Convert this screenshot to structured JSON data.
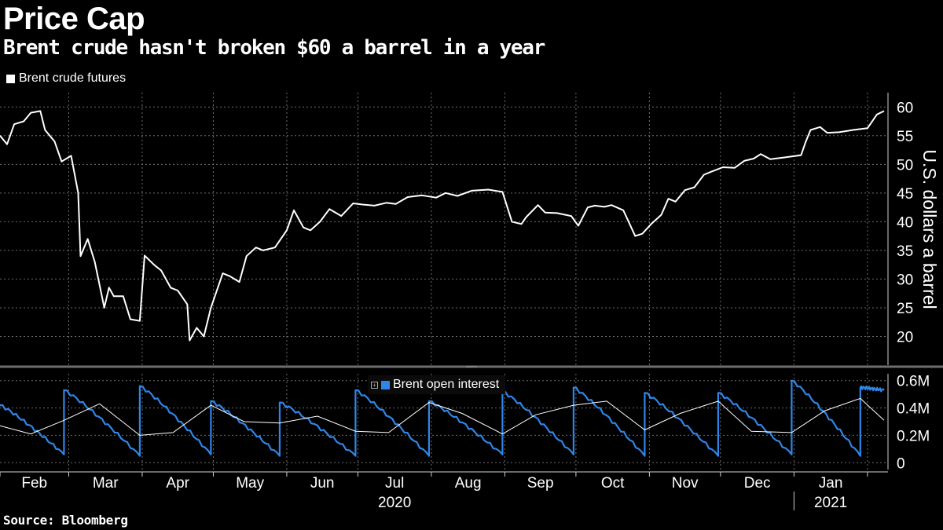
{
  "title": "Price Cap",
  "subtitle": "Brent crude hasn't broken $60 a barrel in a year",
  "source": "Source: Bloomberg",
  "colors": {
    "background": "#000000",
    "price_line": "#ffffff",
    "open_interest": "#2f86e8",
    "grid": "#6e6e6e"
  },
  "chart_data": [
    {
      "type": "line",
      "legend": [
        "Brent crude futures"
      ],
      "ylabel": "U.S. dollars a barrel",
      "ylim": [
        15,
        62.5
      ],
      "yticks": [
        20,
        25,
        30,
        35,
        40,
        45,
        50,
        55,
        60
      ],
      "axis_side": "right",
      "grid": true,
      "series": [
        {
          "name": "Brent crude futures",
          "x": [
            "2020-02-01",
            "2020-02-04",
            "2020-02-07",
            "2020-02-11",
            "2020-02-14",
            "2020-02-18",
            "2020-02-20",
            "2020-02-24",
            "2020-02-27",
            "2020-03-02",
            "2020-03-05",
            "2020-03-06",
            "2020-03-09",
            "2020-03-12",
            "2020-03-16",
            "2020-03-18",
            "2020-03-20",
            "2020-03-24",
            "2020-03-27",
            "2020-03-31",
            "2020-04-02",
            "2020-04-06",
            "2020-04-09",
            "2020-04-13",
            "2020-04-16",
            "2020-04-20",
            "2020-04-21",
            "2020-04-24",
            "2020-04-27",
            "2020-04-30",
            "2020-05-05",
            "2020-05-08",
            "2020-05-12",
            "2020-05-15",
            "2020-05-19",
            "2020-05-22",
            "2020-05-27",
            "2020-06-01",
            "2020-06-04",
            "2020-06-08",
            "2020-06-11",
            "2020-06-15",
            "2020-06-19",
            "2020-06-24",
            "2020-06-29",
            "2020-07-03",
            "2020-07-08",
            "2020-07-13",
            "2020-07-17",
            "2020-07-22",
            "2020-07-28",
            "2020-08-03",
            "2020-08-07",
            "2020-08-12",
            "2020-08-18",
            "2020-08-25",
            "2020-08-31",
            "2020-09-04",
            "2020-09-08",
            "2020-09-10",
            "2020-09-15",
            "2020-09-18",
            "2020-09-23",
            "2020-09-29",
            "2020-10-02",
            "2020-10-06",
            "2020-10-09",
            "2020-10-13",
            "2020-10-16",
            "2020-10-21",
            "2020-10-26",
            "2020-10-29",
            "2020-11-02",
            "2020-11-06",
            "2020-11-09",
            "2020-11-12",
            "2020-11-16",
            "2020-11-20",
            "2020-11-24",
            "2020-11-27",
            "2020-12-02",
            "2020-12-07",
            "2020-12-11",
            "2020-12-15",
            "2020-12-18",
            "2020-12-22",
            "2020-12-28",
            "2021-01-04",
            "2021-01-06",
            "2021-01-08",
            "2021-01-12",
            "2021-01-15",
            "2021-01-20",
            "2021-01-26",
            "2021-02-01",
            "2021-02-05",
            "2021-02-08"
          ],
          "y": [
            55.0,
            53.5,
            57.0,
            57.5,
            59.0,
            59.3,
            56.0,
            54.0,
            50.5,
            51.5,
            45.0,
            34.0,
            37.0,
            33.0,
            25.0,
            28.5,
            27.0,
            27.0,
            23.0,
            22.7,
            34.1,
            32.5,
            31.5,
            28.5,
            28.0,
            25.6,
            19.3,
            21.5,
            20.0,
            25.0,
            31.0,
            30.5,
            29.5,
            34.0,
            35.5,
            35.0,
            35.5,
            38.5,
            42.0,
            39.0,
            38.5,
            40.0,
            42.2,
            41.0,
            43.2,
            43.0,
            42.8,
            43.3,
            43.1,
            44.3,
            44.6,
            44.2,
            45.0,
            44.5,
            45.4,
            45.6,
            45.2,
            40.0,
            39.6,
            40.8,
            42.9,
            41.6,
            41.5,
            41.0,
            39.3,
            42.5,
            42.8,
            42.6,
            42.9,
            42.0,
            37.5,
            37.9,
            39.7,
            41.2,
            44.0,
            43.5,
            45.5,
            46.0,
            48.2,
            48.7,
            49.5,
            49.4,
            50.6,
            51.0,
            51.8,
            50.9,
            51.2,
            51.6,
            54.0,
            56.0,
            56.5,
            55.5,
            55.6,
            56.0,
            56.3,
            58.7,
            59.3
          ]
        }
      ]
    },
    {
      "type": "line",
      "legend": [
        "Brent open interest"
      ],
      "ylim": [
        -0.05,
        0.65
      ],
      "yticks": [
        0,
        0.2,
        0.4,
        0.6
      ],
      "ytick_labels": [
        "0",
        "0.2M",
        "0.4M",
        "0.6M"
      ],
      "axis_side": "right",
      "grid": true,
      "series": [
        {
          "name": "Brent open interest",
          "color": "#2f86e8",
          "cycles": [
            {
              "start": "2020-02-01",
              "end": "2020-02-28",
              "peak": 0.42,
              "trough": 0.06
            },
            {
              "start": "2020-02-28",
              "end": "2020-03-31",
              "peak": 0.53,
              "trough": 0.05
            },
            {
              "start": "2020-03-31",
              "end": "2020-04-30",
              "peak": 0.56,
              "trough": 0.06
            },
            {
              "start": "2020-04-30",
              "end": "2020-05-29",
              "peak": 0.45,
              "trough": 0.05
            },
            {
              "start": "2020-05-29",
              "end": "2020-06-30",
              "peak": 0.44,
              "trough": 0.05
            },
            {
              "start": "2020-06-30",
              "end": "2020-07-31",
              "peak": 0.53,
              "trough": 0.05
            },
            {
              "start": "2020-07-31",
              "end": "2020-08-31",
              "peak": 0.45,
              "trough": 0.06
            },
            {
              "start": "2020-08-31",
              "end": "2020-09-30",
              "peak": 0.52,
              "trough": 0.06
            },
            {
              "start": "2020-09-30",
              "end": "2020-10-30",
              "peak": 0.55,
              "trough": 0.05
            },
            {
              "start": "2020-10-30",
              "end": "2020-11-30",
              "peak": 0.51,
              "trough": 0.05
            },
            {
              "start": "2020-11-30",
              "end": "2020-12-31",
              "peak": 0.51,
              "trough": 0.06
            },
            {
              "start": "2020-12-31",
              "end": "2021-01-29",
              "peak": 0.6,
              "trough": 0.05
            },
            {
              "start": "2021-01-29",
              "end": "2021-02-08",
              "peak": 0.55,
              "trough": 0.53
            }
          ]
        },
        {
          "color": "#ffffff",
          "x": [
            "2020-02-01",
            "2020-02-28",
            "2020-03-31",
            "2020-04-30",
            "2020-05-29",
            "2020-06-30",
            "2020-07-31",
            "2020-08-31",
            "2020-09-30",
            "2020-10-30",
            "2020-11-30",
            "2020-12-31",
            "2021-01-29",
            "2021-02-08"
          ],
          "y": [
            0.27,
            0.31,
            0.2,
            0.42,
            0.29,
            0.23,
            0.44,
            0.21,
            0.42,
            0.24,
            0.45,
            0.22,
            0.47,
            0.31
          ],
          "aux_points": [
            [
              "2020-02-14",
              0.21
            ],
            [
              "2020-03-14",
              0.43
            ],
            [
              "2020-04-14",
              0.22
            ],
            [
              "2020-05-14",
              0.3
            ],
            [
              "2020-06-14",
              0.34
            ],
            [
              "2020-07-14",
              0.22
            ],
            [
              "2020-08-14",
              0.36
            ],
            [
              "2020-09-14",
              0.35
            ],
            [
              "2020-10-14",
              0.45
            ],
            [
              "2020-11-14",
              0.36
            ],
            [
              "2020-12-14",
              0.23
            ],
            [
              "2021-01-14",
              0.38
            ]
          ]
        }
      ]
    }
  ],
  "x_axis": {
    "months": [
      "Feb",
      "Mar",
      "Apr",
      "May",
      "Jun",
      "Jul",
      "Aug",
      "Sep",
      "Oct",
      "Nov",
      "Dec",
      "Jan"
    ],
    "years": [
      "2020",
      "2021"
    ]
  }
}
